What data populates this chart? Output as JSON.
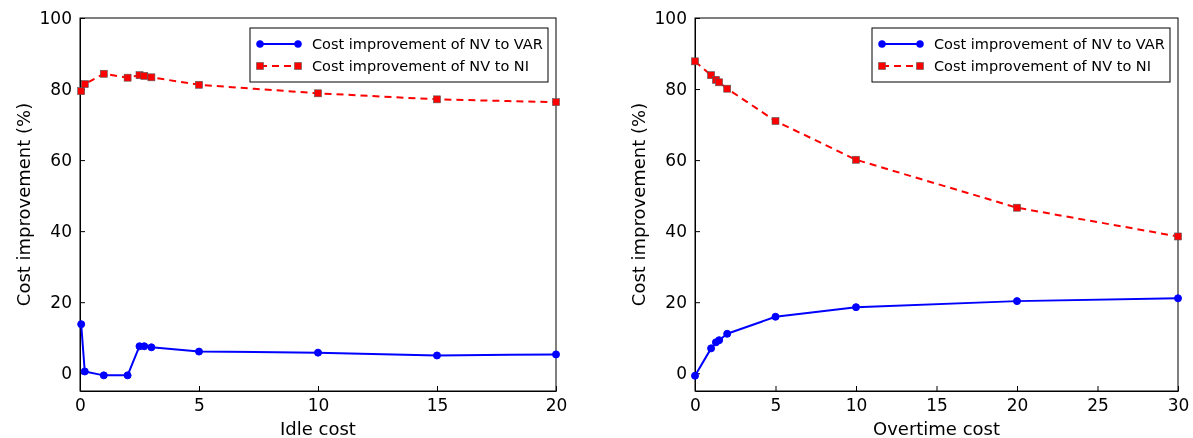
{
  "chart_data": [
    {
      "type": "line",
      "xlabel": "Idle cost",
      "ylabel": "Cost improvement (%)",
      "xlim": [
        0,
        20
      ],
      "xticks": [
        0,
        5,
        10,
        15,
        20
      ],
      "ylim": [
        -5,
        100
      ],
      "yticks": [
        0,
        20,
        40,
        60,
        80,
        100
      ],
      "legend": "top right",
      "grid": false,
      "x": [
        0.05,
        0.2,
        1,
        2,
        2.5,
        2.7,
        3,
        5,
        10,
        15,
        20
      ],
      "series": [
        {
          "name": "Cost improvement of NV to VAR",
          "color": "#0000ff",
          "marker": "circle",
          "line_style": "solid",
          "values": [
            13.8,
            0.5,
            -0.6,
            -0.6,
            7.6,
            7.6,
            7.3,
            6.1,
            5.8,
            5.0,
            5.3
          ]
        },
        {
          "name": "Cost improvement of NV to NI",
          "color": "#ff0000",
          "marker": "square",
          "line_style": "dashed",
          "values": [
            79.4,
            81.4,
            84.3,
            83.2,
            83.9,
            83.7,
            83.3,
            81.2,
            78.8,
            77.1,
            76.3
          ]
        }
      ]
    },
    {
      "type": "line",
      "xlabel": "Overtime cost",
      "ylabel": "Cost improvement (%)",
      "xlim": [
        0,
        30
      ],
      "xticks": [
        0,
        5,
        10,
        15,
        20,
        25,
        30
      ],
      "ylim": [
        -5,
        100
      ],
      "yticks": [
        0,
        20,
        40,
        60,
        80,
        100
      ],
      "legend": "top right",
      "grid": false,
      "x": [
        0,
        1,
        1.3,
        1.5,
        2,
        5,
        10,
        20,
        30
      ],
      "series": [
        {
          "name": "Cost improvement of NV to VAR",
          "color": "#0000ff",
          "marker": "circle",
          "line_style": "solid",
          "values": [
            -0.7,
            7.0,
            8.7,
            9.3,
            11.1,
            15.9,
            18.6,
            20.3,
            21.1
          ]
        },
        {
          "name": "Cost improvement of NV to NI",
          "color": "#ff0000",
          "marker": "square",
          "line_style": "dashed",
          "values": [
            87.8,
            83.9,
            82.6,
            81.9,
            80.1,
            71.0,
            60.1,
            46.6,
            38.5
          ]
        }
      ]
    }
  ]
}
